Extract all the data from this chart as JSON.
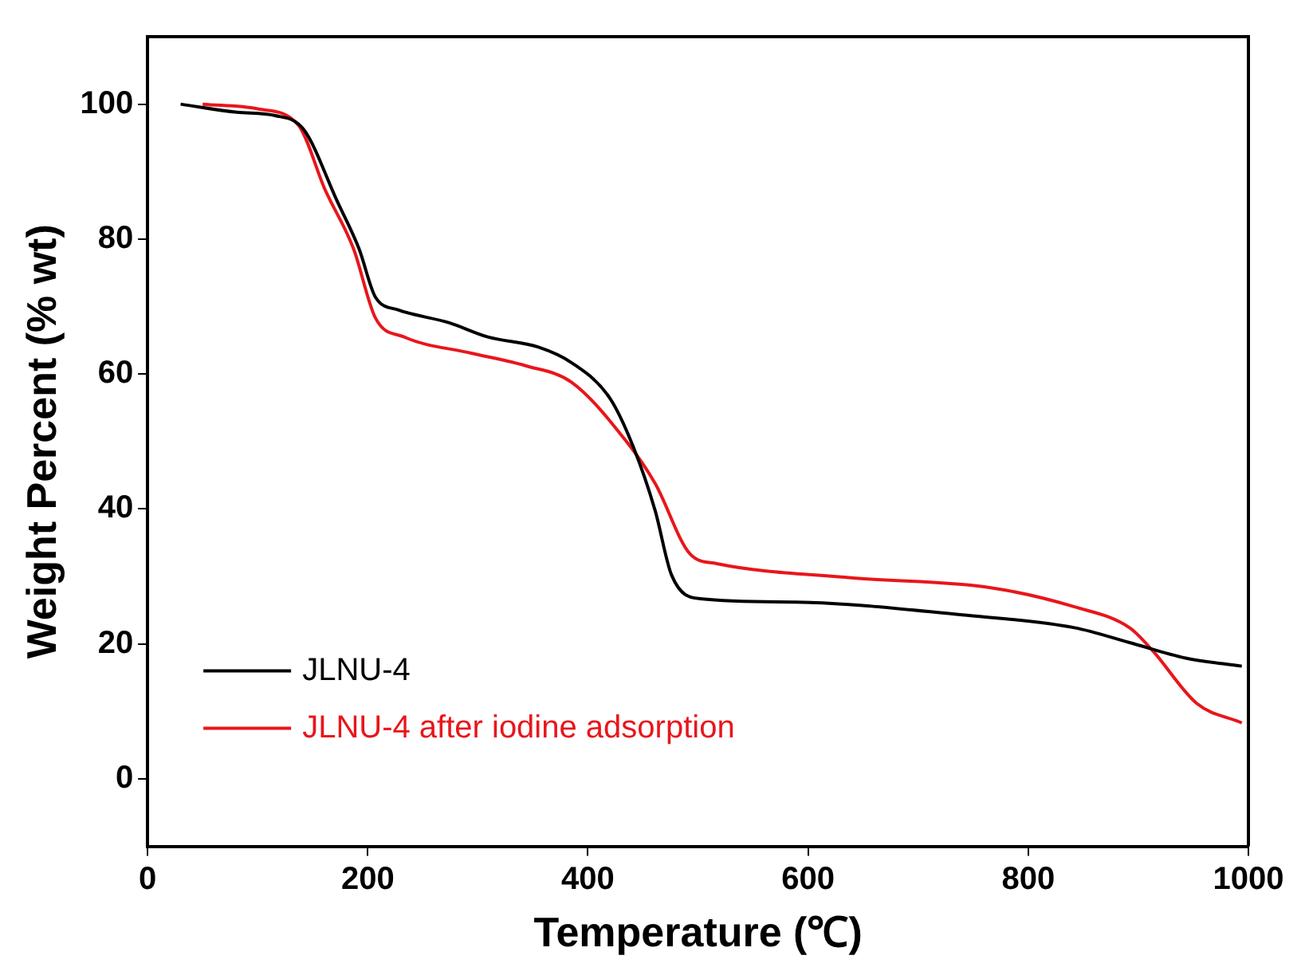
{
  "chart_data": {
    "type": "line",
    "xlabel": "Temperature (℃)",
    "ylabel": "Weight Percent (% wt)",
    "xlim": [
      0,
      1000
    ],
    "xticks": [
      0,
      200,
      400,
      600,
      800,
      1000
    ],
    "ylim": [
      -10,
      110
    ],
    "yticks": [
      0,
      20,
      40,
      60,
      80,
      100
    ],
    "grid": false,
    "legend": "bottom left",
    "marker": "none",
    "line_style": "solid",
    "series": [
      {
        "name": "JLNU-4",
        "color": "#000000",
        "x": [
          30,
          81,
          116,
          142,
          172,
          192,
          207,
          228,
          274,
          309,
          355,
          385,
          420,
          441,
          461,
          476,
          502,
          588,
          740,
          842,
          892,
          943,
          994
        ],
        "values": [
          100,
          98.8,
          98.3,
          96.2,
          85.7,
          78.6,
          71.4,
          69.5,
          67.6,
          65.5,
          64,
          61.7,
          56.4,
          49.3,
          39.8,
          30.2,
          26.7,
          26.2,
          24.3,
          22.4,
          20.2,
          17.9,
          16.7
        ]
      },
      {
        "name": "JLNU-4 after iodine adsorption",
        "color": "#e8161b",
        "x": [
          50,
          100,
          137,
          161,
          187,
          207,
          233,
          294,
          344,
          385,
          435,
          461,
          493,
          517,
          639,
          767,
          842,
          892,
          913,
          953,
          994
        ],
        "values": [
          100,
          99.3,
          96.9,
          87.4,
          78.6,
          68.3,
          65.5,
          63.1,
          61.2,
          58.8,
          50,
          43.8,
          33.3,
          31.9,
          29.8,
          28.3,
          25.5,
          22.4,
          19,
          11.2,
          8.3
        ]
      }
    ]
  }
}
